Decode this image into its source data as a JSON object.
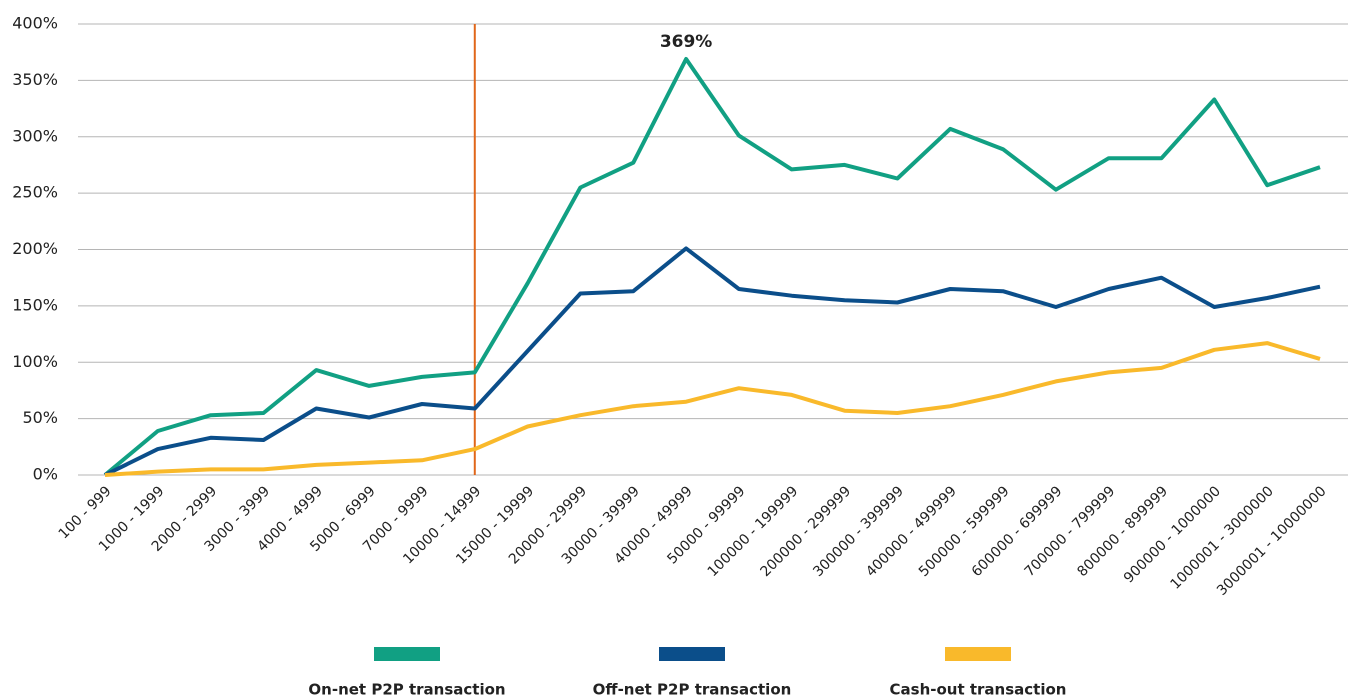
{
  "chart_data": {
    "type": "line",
    "categories": [
      "100 - 999",
      "1000 - 1999",
      "2000 - 2999",
      "3000 - 3999",
      "4000 - 4999",
      "5000 - 6999",
      "7000 - 9999",
      "10000 - 14999",
      "15000 - 19999",
      "20000 - 29999",
      "30000 - 39999",
      "40000 - 49999",
      "50000 - 99999",
      "100000 - 199999",
      "200000 - 299999",
      "300000 - 399999",
      "400000 - 499999",
      "500000 - 599999",
      "600000 - 699999",
      "700000 - 799999",
      "800000 - 899999",
      "900000 - 1000000",
      "1000001 - 3000000",
      "3000001 - 10000000"
    ],
    "series": [
      {
        "name": "On-net P2P transaction",
        "color": "#11a083",
        "values": [
          0,
          39,
          53,
          55,
          93,
          79,
          87,
          91,
          170,
          255,
          277,
          369,
          301,
          271,
          275,
          263,
          307,
          289,
          253,
          281,
          281,
          333,
          257,
          273
        ]
      },
      {
        "name": "Off-net P2P transaction",
        "color": "#0b4e8a",
        "values": [
          0,
          23,
          33,
          31,
          59,
          51,
          63,
          59,
          110,
          161,
          163,
          201,
          165,
          159,
          155,
          153,
          165,
          163,
          149,
          165,
          175,
          149,
          157,
          167
        ]
      },
      {
        "name": "Cash-out transaction",
        "color": "#f9b92b",
        "values": [
          0,
          3,
          5,
          5,
          9,
          11,
          13,
          23,
          43,
          53,
          61,
          65,
          77,
          71,
          57,
          55,
          61,
          71,
          83,
          91,
          95,
          111,
          117,
          103
        ]
      }
    ],
    "annotation": "369%",
    "reference_line": {
      "category": "10000 - 14999",
      "color": "#e0661a"
    },
    "ylim": [
      0,
      400
    ],
    "yticks": [
      {
        "value": 0,
        "label": "0%"
      },
      {
        "value": 50,
        "label": "50%"
      },
      {
        "value": 100,
        "label": "100%"
      },
      {
        "value": 150,
        "label": "150%"
      },
      {
        "value": 200,
        "label": "200%"
      },
      {
        "value": 250,
        "label": "250%"
      },
      {
        "value": 300,
        "label": "300%"
      },
      {
        "value": 350,
        "label": "350%"
      },
      {
        "value": 400,
        "label": "400%"
      }
    ],
    "grid": true,
    "legend": "bottom"
  }
}
